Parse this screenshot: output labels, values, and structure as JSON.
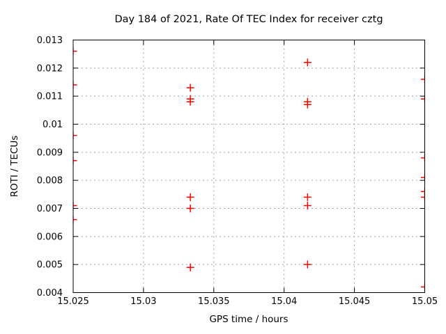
{
  "page": {
    "background_color": "#ffffff"
  },
  "chart_data": {
    "type": "scatter",
    "title": "Day 184 of 2021, Rate Of TEC Index for receiver cztg",
    "xlabel": "GPS time / hours",
    "ylabel": "ROTI / TECUs",
    "xlim": [
      15.025,
      15.05
    ],
    "ylim": [
      0.004,
      0.013
    ],
    "xticks": [
      15.025,
      15.03,
      15.035,
      15.04,
      15.045,
      15.05
    ],
    "xtick_labels": [
      "15.025",
      "15.03",
      "15.035",
      "15.04",
      "15.045",
      "15.05"
    ],
    "yticks": [
      0.004,
      0.005,
      0.006,
      0.007,
      0.008,
      0.009,
      0.01,
      0.011,
      0.012,
      0.013
    ],
    "ytick_labels": [
      "0.004",
      "0.005",
      "0.006",
      "0.007",
      "0.008",
      "0.009",
      "0.01",
      "0.011",
      "0.012",
      "0.013"
    ],
    "grid": true,
    "grid_style": "dashed",
    "legend_position": "none",
    "marker_shape": "plus",
    "marker_color": "#ff0000",
    "grid_color": "#a0a0a0",
    "axis_color": "#000000",
    "text_color": "#000000",
    "series": [
      {
        "name": "ROTI",
        "points": [
          [
            15.025,
            0.0126
          ],
          [
            15.025,
            0.0114
          ],
          [
            15.025,
            0.0096
          ],
          [
            15.025,
            0.0087
          ],
          [
            15.025,
            0.0071
          ],
          [
            15.025,
            0.0066
          ],
          [
            15.033333,
            0.0113
          ],
          [
            15.033333,
            0.0109
          ],
          [
            15.033333,
            0.0108
          ],
          [
            15.033333,
            0.0074
          ],
          [
            15.033333,
            0.007
          ],
          [
            15.033333,
            0.0049
          ],
          [
            15.041667,
            0.0122
          ],
          [
            15.041667,
            0.0108
          ],
          [
            15.041667,
            0.0107
          ],
          [
            15.041667,
            0.0074
          ],
          [
            15.041667,
            0.0071
          ],
          [
            15.041667,
            0.005
          ],
          [
            15.05,
            0.0116
          ],
          [
            15.05,
            0.0109
          ],
          [
            15.05,
            0.0088
          ],
          [
            15.05,
            0.0081
          ],
          [
            15.05,
            0.0076
          ],
          [
            15.05,
            0.0074
          ],
          [
            15.05,
            0.0042
          ]
        ]
      }
    ]
  }
}
